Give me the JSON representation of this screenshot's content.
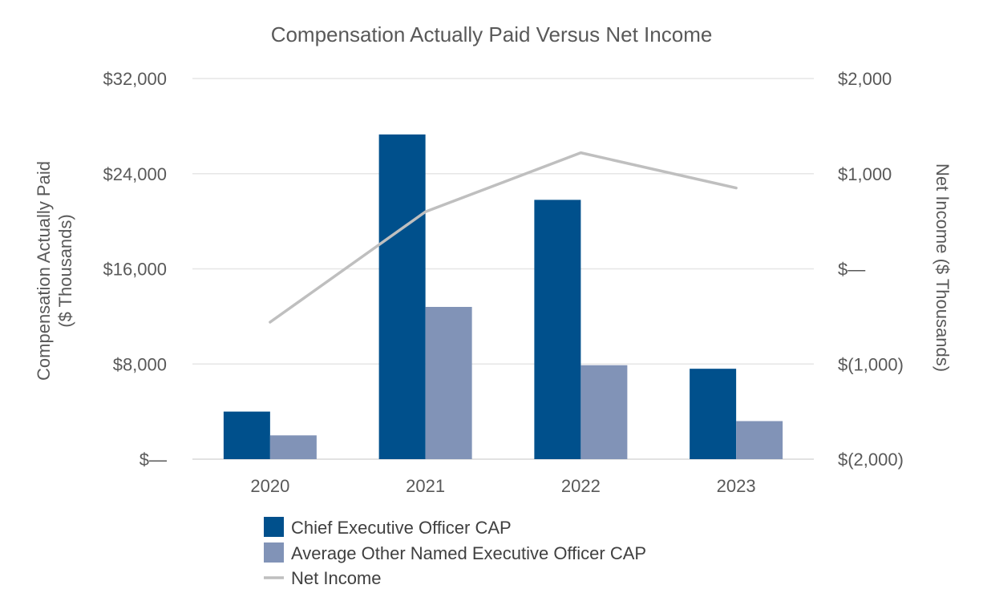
{
  "chart_data": {
    "type": "bar",
    "title": "Compensation Actually Paid Versus Net Income",
    "categories": [
      "2020",
      "2021",
      "2022",
      "2023"
    ],
    "series": [
      {
        "name": "Chief Executive Officer CAP",
        "kind": "bar",
        "axis": "left",
        "color": "#00508C",
        "values": [
          4000,
          27300,
          21800,
          7600
        ]
      },
      {
        "name": "Average Other Named Executive Officer CAP",
        "kind": "bar",
        "axis": "left",
        "color": "#8193B7",
        "values": [
          2000,
          12800,
          7900,
          3200
        ]
      },
      {
        "name": "Net Income",
        "kind": "line",
        "axis": "right",
        "color": "#BFBFBF",
        "values": [
          -560,
          600,
          1220,
          850
        ]
      }
    ],
    "y_left": {
      "label_line1": "Compensation Actually Paid",
      "label_line2": "($ Thousands)",
      "range": [
        0,
        32000
      ],
      "ticks": [
        0,
        8000,
        16000,
        24000,
        32000
      ],
      "tick_labels": [
        "$—",
        "$8,000",
        "$16,000",
        "$24,000",
        "$32,000"
      ]
    },
    "y_right": {
      "label": "Net Income ($ Thousands)",
      "range": [
        -2000,
        2000
      ],
      "ticks": [
        -2000,
        -1000,
        0,
        1000,
        2000
      ],
      "tick_labels": [
        "$(2,000)",
        "$(1,000)",
        "$—",
        "$1,000",
        "$2,000"
      ]
    },
    "grid": true,
    "legend": "bottom",
    "colors": {
      "grid": "#E6E6E6",
      "text": "#595959"
    }
  }
}
